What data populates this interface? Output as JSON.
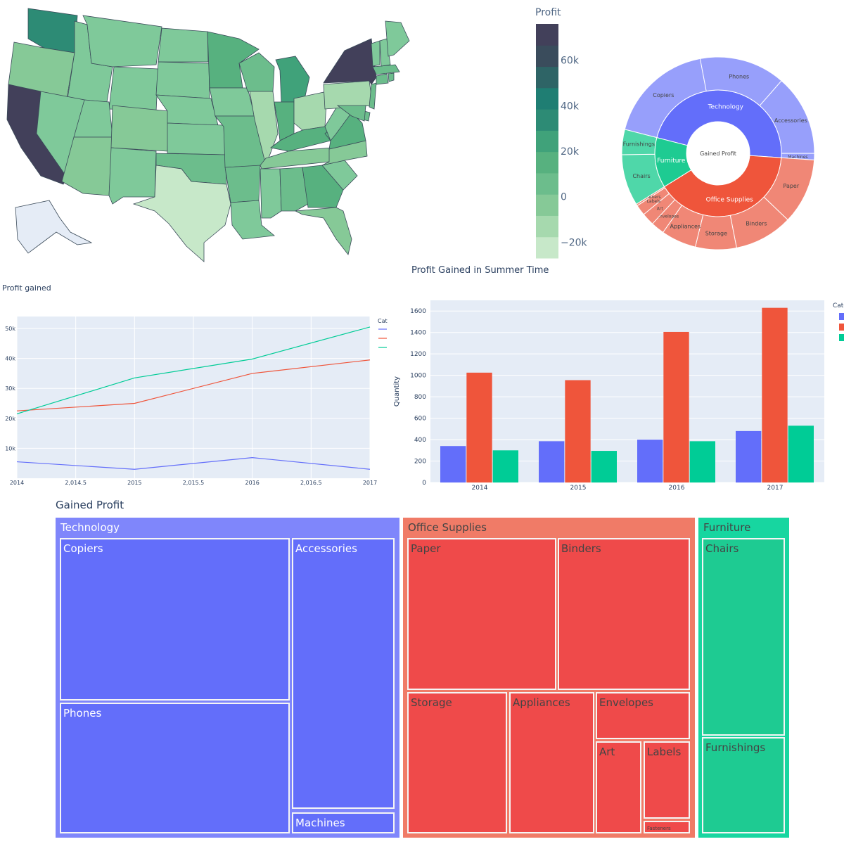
{
  "chart_data": [
    {
      "type": "choropleth",
      "colorbar_title": "Profit",
      "colorbar_ticks": [
        "60k",
        "40k",
        "20k",
        "0",
        "−20k"
      ],
      "colorbar_range": [
        -27000,
        76000
      ],
      "colorscale": [
        "#c7e8c9",
        "#a6d9ae",
        "#86c997",
        "#6cbd8c",
        "#57b17f",
        "#40a27a",
        "#2d8b75",
        "#1f7e73",
        "#2e6466",
        "#3a4c5c",
        "#42405a"
      ],
      "states": [
        {
          "name": "California",
          "profit": 76381
        },
        {
          "name": "New York",
          "profit": 74039
        },
        {
          "name": "Washington",
          "profit": 33403
        },
        {
          "name": "Michigan",
          "profit": 24463
        },
        {
          "name": "Virginia",
          "profit": 18598
        },
        {
          "name": "Indiana",
          "profit": 18383
        },
        {
          "name": "Georgia",
          "profit": 16250
        },
        {
          "name": "Kentucky",
          "profit": 11200
        },
        {
          "name": "Minnesota",
          "profit": 10823
        },
        {
          "name": "Delaware",
          "profit": 9977
        },
        {
          "name": "New Jersey",
          "profit": 9773
        },
        {
          "name": "Wisconsin",
          "profit": 8402
        },
        {
          "name": "Rhode Island",
          "profit": 7286
        },
        {
          "name": "Maryland",
          "profit": 7031
        },
        {
          "name": "Massachusetts",
          "profit": 6786
        },
        {
          "name": "Missouri",
          "profit": 6436
        },
        {
          "name": "Alabama",
          "profit": 5787
        },
        {
          "name": "Oklahoma",
          "profit": 4854
        },
        {
          "name": "Arkansas",
          "profit": 4009
        },
        {
          "name": "Connecticut",
          "profit": 3511
        },
        {
          "name": "Texas",
          "profit": -25729
        },
        {
          "name": "Ohio",
          "profit": -16971
        },
        {
          "name": "Pennsylvania",
          "profit": -15560
        },
        {
          "name": "Illinois",
          "profit": -12608
        },
        {
          "name": "North Carolina",
          "profit": -7491
        },
        {
          "name": "Florida",
          "profit": -3399
        },
        {
          "name": "Arizona",
          "profit": -3428
        },
        {
          "name": "Colorado",
          "profit": -6528
        },
        {
          "name": "Tennessee",
          "profit": -5341
        },
        {
          "name": "Oregon",
          "profit": -1190
        }
      ]
    },
    {
      "type": "sunburst",
      "center_label": "Gained Profit",
      "categories": [
        {
          "name": "Technology",
          "color": "#636efa",
          "outer_color": "#979ffb",
          "children": [
            {
              "name": "Copiers",
              "value": 55618
            },
            {
              "name": "Phones",
              "value": 44516
            },
            {
              "name": "Accessories",
              "value": 41937
            },
            {
              "name": "Machines",
              "value": 3385
            }
          ]
        },
        {
          "name": "Office Supplies",
          "color": "#ef553b",
          "outer_color": "#f08776",
          "children": [
            {
              "name": "Paper",
              "value": 34054
            },
            {
              "name": "Binders",
              "value": 30222
            },
            {
              "name": "Storage",
              "value": 21279
            },
            {
              "name": "Appliances",
              "value": 18138
            },
            {
              "name": "Envelopes",
              "value": 6964
            },
            {
              "name": "Art",
              "value": 6528
            },
            {
              "name": "Labels",
              "value": 5546
            },
            {
              "name": "Fasteners",
              "value": 950
            }
          ]
        },
        {
          "name": "Furniture",
          "color": "#1ecb92",
          "outer_color": "#4fd7a9",
          "children": [
            {
              "name": "Chairs",
              "value": 26590
            },
            {
              "name": "Furnishings",
              "value": 13059
            }
          ]
        }
      ]
    },
    {
      "type": "line",
      "title": "Profit gained",
      "legend_title": "Cat",
      "x": [
        2014,
        2015,
        2016,
        2017
      ],
      "x_ticks": [
        "2014",
        "2,014.5",
        "2015",
        "2,015.5",
        "2016",
        "2,016.5",
        "2017"
      ],
      "y_ticks": [
        "50k",
        "40k",
        "30k",
        "20k",
        "10k"
      ],
      "ylim": [
        0,
        54000
      ],
      "series": [
        {
          "color": "#636efa",
          "values": [
            5500,
            3000,
            6900,
            3000
          ]
        },
        {
          "color": "#ef553b",
          "values": [
            22500,
            25000,
            35000,
            39500
          ]
        },
        {
          "color": "#00cc96",
          "values": [
            21500,
            33500,
            39800,
            50500
          ]
        }
      ]
    },
    {
      "type": "bar",
      "title": "Profit Gained in Summer Time",
      "ylabel": "Quantity",
      "legend_title": "Cate",
      "categories": [
        "2014",
        "2015",
        "2016",
        "2017"
      ],
      "ylim": [
        0,
        1700
      ],
      "y_ticks": [
        0,
        200,
        400,
        600,
        800,
        1000,
        1200,
        1400,
        1600
      ],
      "series": [
        {
          "color": "#636efa",
          "values": [
            340,
            385,
            400,
            480
          ]
        },
        {
          "color": "#ef553b",
          "values": [
            1025,
            955,
            1405,
            1630
          ]
        },
        {
          "color": "#00cc96",
          "values": [
            300,
            295,
            385,
            530
          ]
        }
      ]
    },
    {
      "type": "treemap",
      "title": "Gained Profit",
      "categories": [
        {
          "name": "Technology",
          "color": "#7f86fb",
          "leaf_color": "#636efa",
          "children": [
            {
              "name": "Copiers",
              "value": 55618
            },
            {
              "name": "Phones",
              "value": 44516
            },
            {
              "name": "Accessories",
              "value": 41937
            },
            {
              "name": "Machines",
              "value": 3385
            }
          ]
        },
        {
          "name": "Office Supplies",
          "color": "#f07b67",
          "leaf_color": "#ef4a4a",
          "children": [
            {
              "name": "Paper",
              "value": 34054
            },
            {
              "name": "Binders",
              "value": 30222
            },
            {
              "name": "Storage",
              "value": 21279
            },
            {
              "name": "Appliances",
              "value": 18138
            },
            {
              "name": "Envelopes",
              "value": 6964
            },
            {
              "name": "Art",
              "value": 6528
            },
            {
              "name": "Labels",
              "value": 5546
            },
            {
              "name": "Fasteners",
              "value": 950
            }
          ]
        },
        {
          "name": "Furniture",
          "color": "#17d6a0",
          "leaf_color": "#1ecb92",
          "children": [
            {
              "name": "Chairs",
              "value": 26590
            },
            {
              "name": "Furnishings",
              "value": 13059
            }
          ]
        }
      ]
    }
  ]
}
